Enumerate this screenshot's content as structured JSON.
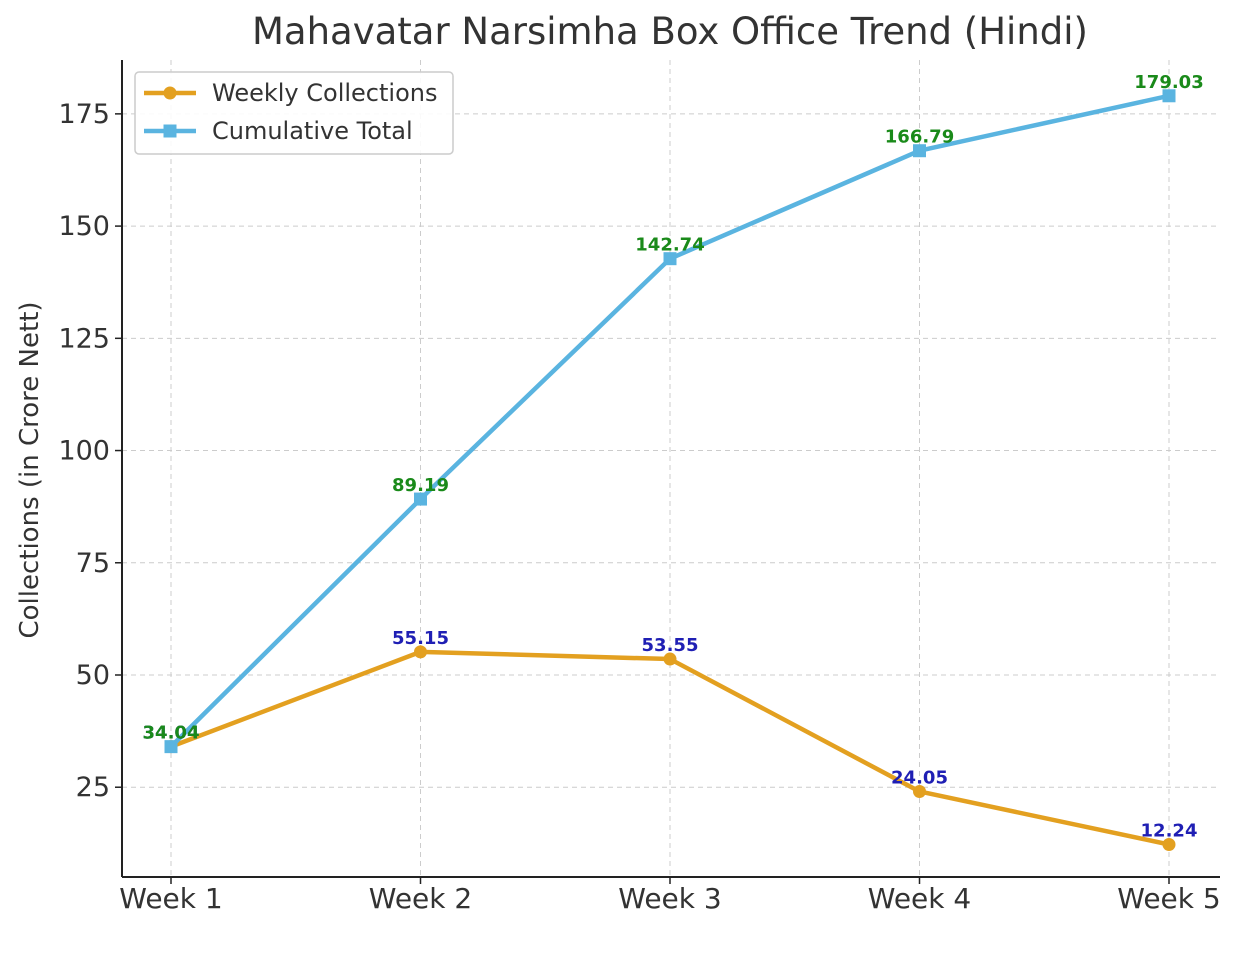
{
  "chart_data": {
    "type": "line",
    "title": "Mahavatar Narsimha Box Office Trend (Hindi)",
    "xlabel": "",
    "ylabel": "Collections (in Crore Nett)",
    "categories": [
      "Week 1",
      "Week 2",
      "Week 3",
      "Week 4",
      "Week 5"
    ],
    "series": [
      {
        "name": "Weekly Collections",
        "values": [
          34.04,
          55.15,
          53.55,
          24.05,
          12.24
        ],
        "color": "#E3A020",
        "marker": "circle",
        "label_color": "#1F1FB4"
      },
      {
        "name": "Cumulative Total",
        "values": [
          34.04,
          89.19,
          142.74,
          166.79,
          179.03
        ],
        "color": "#5AB4E0",
        "marker": "square",
        "label_color": "#1A8A1A"
      }
    ],
    "ylim": [
      5,
      187
    ],
    "yticks": [
      25,
      50,
      75,
      100,
      125,
      150,
      175
    ],
    "grid": true,
    "legend_position": "top-left"
  }
}
